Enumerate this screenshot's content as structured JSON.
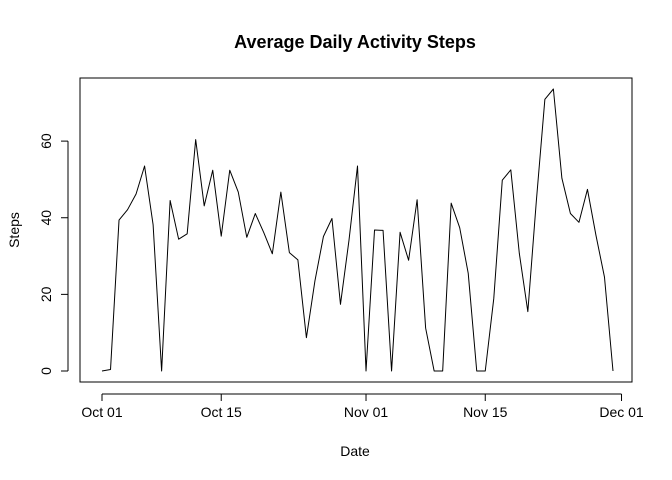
{
  "chart_data": {
    "type": "line",
    "title": "Average Daily Activity Steps",
    "xlabel": "Date",
    "ylabel": "Steps",
    "x_start": "2012-10-01",
    "x_ticks": [
      {
        "date": "2012-10-01",
        "label": "Oct 01"
      },
      {
        "date": "2012-10-15",
        "label": "Oct 15"
      },
      {
        "date": "2012-11-01",
        "label": "Nov 01"
      },
      {
        "date": "2012-11-15",
        "label": "Nov 15"
      },
      {
        "date": "2012-12-01",
        "label": "Dec 01"
      }
    ],
    "y_ticks": [
      0,
      20,
      40,
      60
    ],
    "xlim": [
      "2012-10-01",
      "2012-11-30"
    ],
    "ylim": [
      0,
      73.6
    ],
    "grid": false,
    "series": [
      {
        "color": "#000000",
        "x": [
          "2012-10-01",
          "2012-10-02",
          "2012-10-03",
          "2012-10-04",
          "2012-10-05",
          "2012-10-06",
          "2012-10-07",
          "2012-10-08",
          "2012-10-09",
          "2012-10-10",
          "2012-10-11",
          "2012-10-12",
          "2012-10-13",
          "2012-10-14",
          "2012-10-15",
          "2012-10-16",
          "2012-10-17",
          "2012-10-18",
          "2012-10-19",
          "2012-10-20",
          "2012-10-21",
          "2012-10-22",
          "2012-10-23",
          "2012-10-24",
          "2012-10-25",
          "2012-10-26",
          "2012-10-27",
          "2012-10-28",
          "2012-10-29",
          "2012-10-30",
          "2012-10-31",
          "2012-11-01",
          "2012-11-02",
          "2012-11-03",
          "2012-11-04",
          "2012-11-05",
          "2012-11-06",
          "2012-11-07",
          "2012-11-08",
          "2012-11-09",
          "2012-11-10",
          "2012-11-11",
          "2012-11-12",
          "2012-11-13",
          "2012-11-14",
          "2012-11-15",
          "2012-11-16",
          "2012-11-17",
          "2012-11-18",
          "2012-11-19",
          "2012-11-20",
          "2012-11-21",
          "2012-11-22",
          "2012-11-23",
          "2012-11-24",
          "2012-11-25",
          "2012-11-26",
          "2012-11-27",
          "2012-11-28",
          "2012-11-29",
          "2012-11-30"
        ],
        "y": [
          0,
          0.4,
          39.4,
          42.1,
          46.2,
          53.5,
          38.2,
          0,
          44.5,
          34.4,
          35.8,
          60.4,
          43.1,
          52.4,
          35.2,
          52.4,
          46.7,
          34.9,
          41.1,
          36.1,
          30.6,
          46.7,
          30.9,
          29.0,
          8.7,
          23.5,
          35.1,
          39.8,
          17.4,
          34.1,
          53.5,
          0,
          36.8,
          36.7,
          0,
          36.2,
          28.9,
          44.7,
          11.2,
          0,
          0,
          43.8,
          37.4,
          25.5,
          0,
          0,
          18.9,
          49.8,
          52.5,
          30.7,
          15.5,
          44.4,
          70.9,
          73.6,
          50.3,
          41.1,
          38.8,
          47.4,
          35.4,
          24.5,
          0
        ]
      }
    ]
  }
}
